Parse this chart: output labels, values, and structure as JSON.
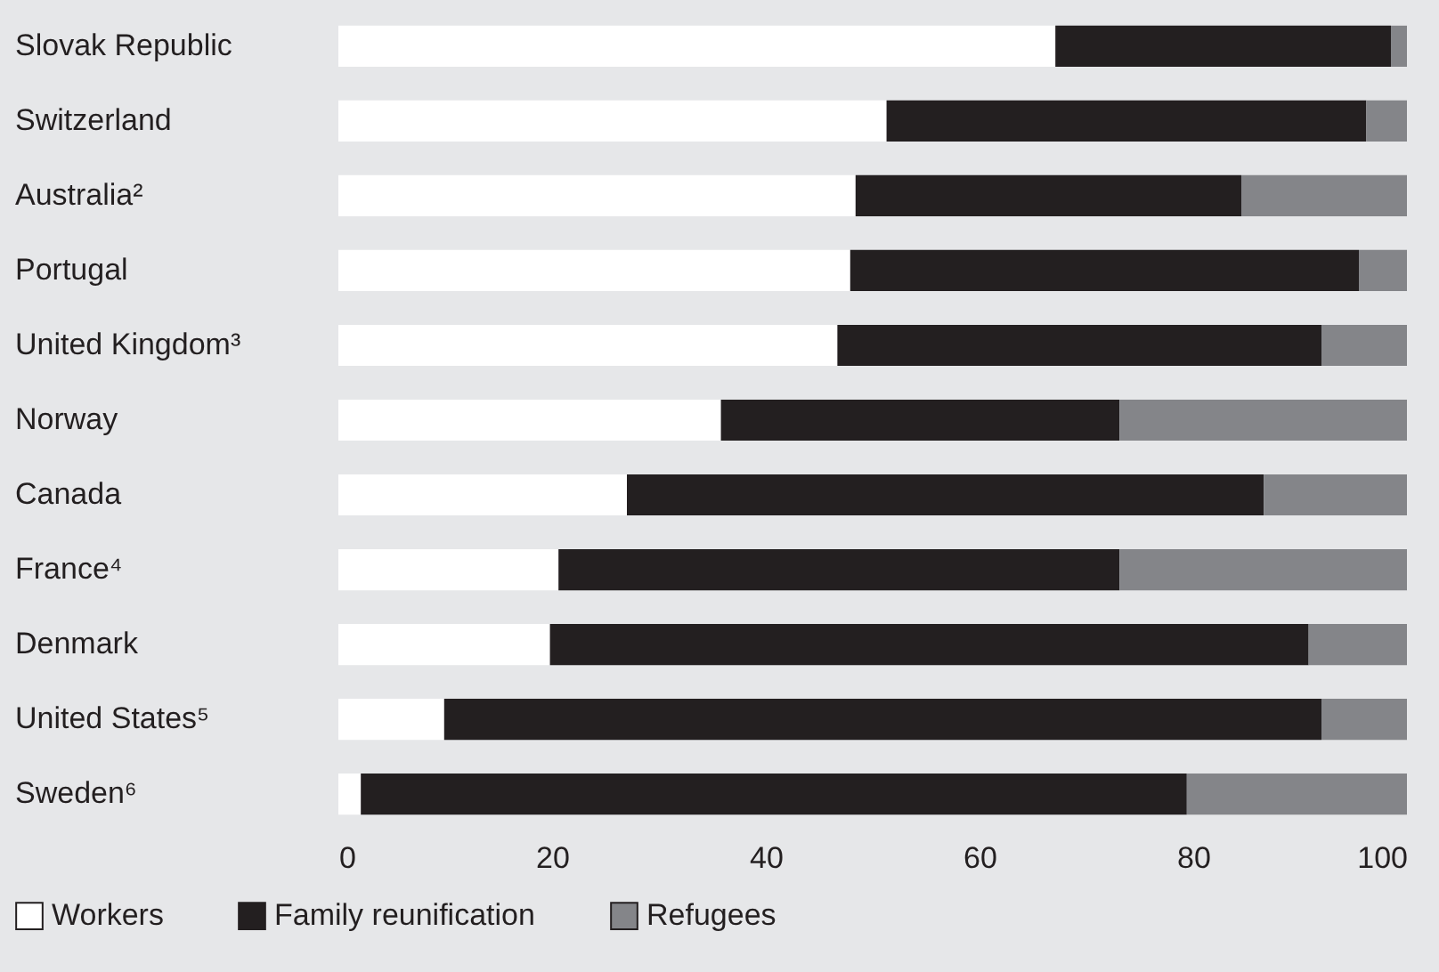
{
  "chart_data": {
    "type": "bar",
    "orientation": "horizontal",
    "stacked": true,
    "legend": "bottom left",
    "categories": [
      "Slovak Republic",
      "Switzerland",
      "Australia²",
      "Portugal",
      "United Kingdom³",
      "Norway",
      "Canada",
      "France⁴",
      "Denmark",
      "United States⁵",
      "Sweden⁶"
    ],
    "series": [
      {
        "name": "Workers",
        "color": "#ffffff",
        "values": [
          67.1,
          51.3,
          48.4,
          47.9,
          46.7,
          35.8,
          27.0,
          20.6,
          19.8,
          9.9,
          2.1
        ]
      },
      {
        "name": "Family reunification",
        "color": "#231f20",
        "values": [
          31.4,
          44.9,
          36.1,
          47.6,
          45.3,
          37.3,
          59.6,
          52.5,
          71.0,
          82.1,
          77.3
        ]
      },
      {
        "name": "Refugees",
        "color": "#848589",
        "values": [
          1.5,
          3.8,
          15.5,
          4.5,
          8.0,
          26.9,
          13.4,
          26.9,
          9.2,
          8.0,
          20.6
        ]
      }
    ],
    "xlim": [
      0,
      100
    ],
    "xticks": [
      0,
      20,
      40,
      60,
      80,
      100
    ]
  }
}
